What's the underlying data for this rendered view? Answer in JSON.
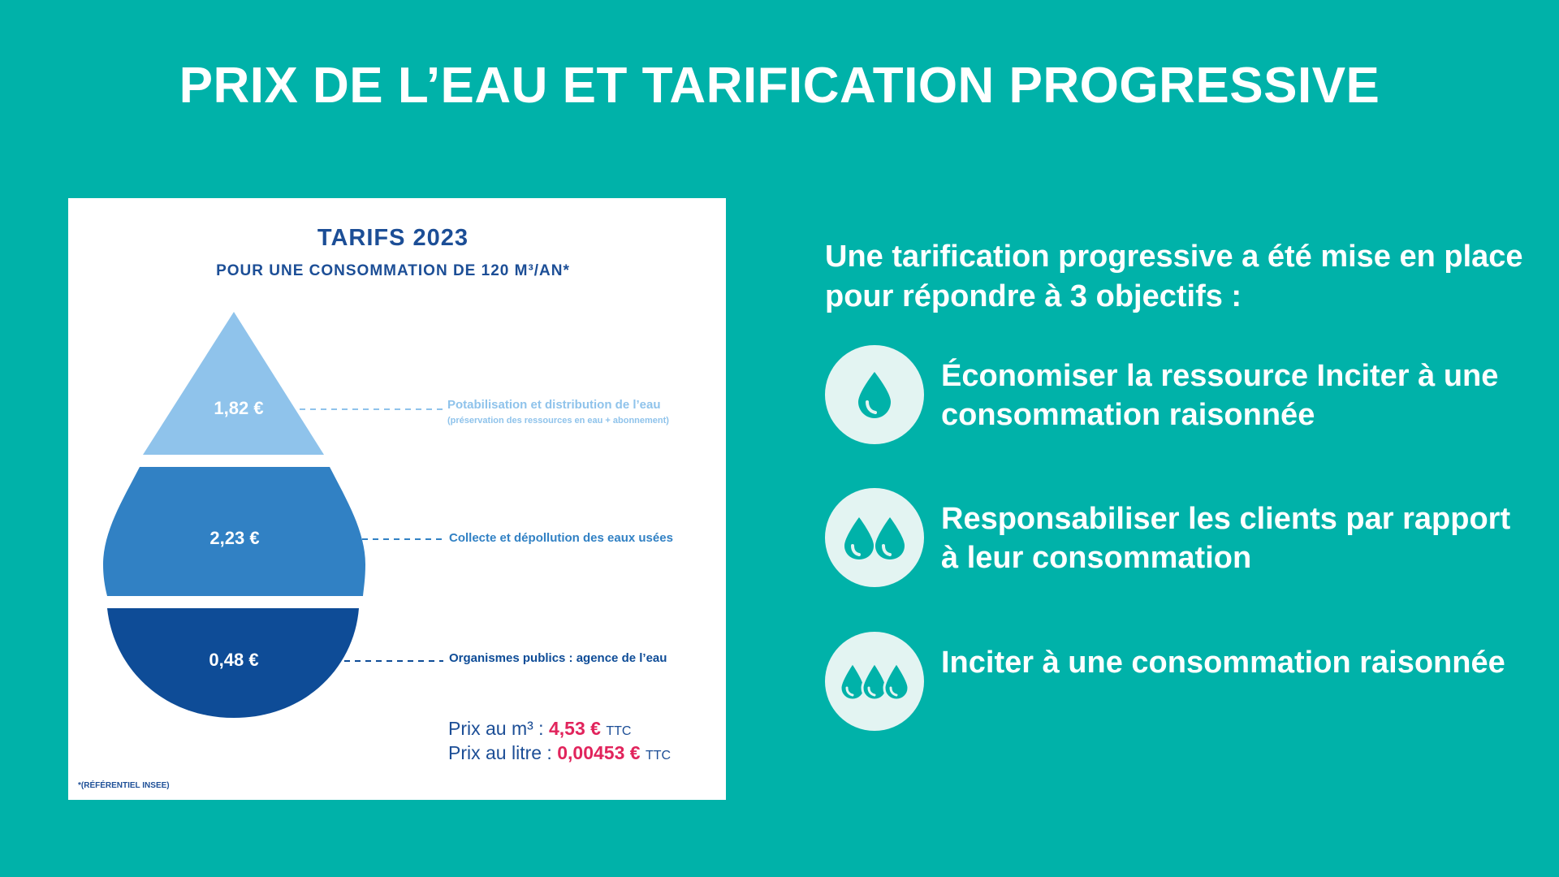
{
  "title": "PRIX DE L’EAU ET TARIFICATION PROGRESSIVE",
  "card": {
    "title": "TARIFS 2023",
    "subtitle": "POUR UNE CONSOMMATION DE 120 M³/AN*",
    "tiers": [
      {
        "value": "1,82 €",
        "label": "Potabilisation et distribution de l’eau",
        "sublabel": "(préservation des ressources en eau + abonnement)",
        "color": "#8fc3eb"
      },
      {
        "value": "2,23 €",
        "label": "Collecte et dépollution des eaux usées",
        "color": "#3181c4"
      },
      {
        "value": "0,48 €",
        "label": "Organismes publics : agence de l’eau",
        "color": "#0e4c97"
      }
    ],
    "price_m3": {
      "label": "Prix au m³ : ",
      "value": "4,53 €",
      "suffix": "TTC"
    },
    "price_litre": {
      "label": "Prix au litre : ",
      "value": "0,00453 €",
      "suffix": "TTC"
    },
    "footnote": "*(RÉFÉRENTIEL INSEE)"
  },
  "intro": "Une tarification progressive a été mise en place pour répondre à 3 objectifs :",
  "objectives": [
    {
      "icon": "single-drop-icon",
      "text": "Économiser la ressource Inciter à une consommation raisonnée"
    },
    {
      "icon": "two-drops-icon",
      "text": "Responsabiliser les clients par rapport à leur consommation"
    },
    {
      "icon": "three-drops-icon",
      "text": "Inciter à une consommation raisonnée"
    }
  ],
  "colors": {
    "background": "#00b2a9",
    "accent_text": "#1c4e96",
    "price_value": "#e1245c",
    "icon_bg": "#e3f4f2",
    "icon_drop": "#00b2a9"
  }
}
